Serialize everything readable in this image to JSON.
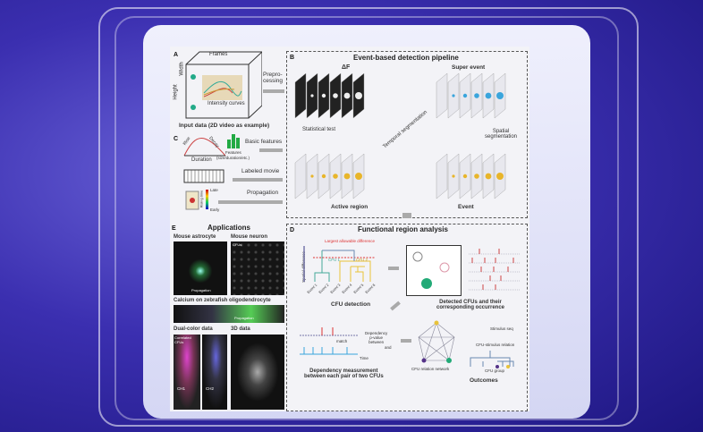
{
  "panelA": {
    "letter": "A",
    "width": "Width",
    "frames": "Frames",
    "height": "Height",
    "curves": "Intensity curves",
    "caption": "Input data (2D video as example)",
    "arrow": "Prepro-\ncessing"
  },
  "panelB": {
    "letter": "B",
    "title": "Event-based detection pipeline",
    "dF": "ΔF",
    "super": "Super event",
    "stat": "Statistical test",
    "temporal": "Temporal segmentation",
    "spatial": "Spatial segmentation",
    "active": "Active region",
    "event": "Event"
  },
  "panelC": {
    "letter": "C",
    "rise": "Rise",
    "decay": "Decay",
    "duration": "Duration",
    "features": "Features",
    "features_sub": "(size/duration/etc.)",
    "basic": "Basic features",
    "labeled": "Labeled movie",
    "propagation": "Propagation",
    "late": "Late",
    "early": "Early",
    "rising": "Rising time"
  },
  "panelE": {
    "letter": "E",
    "title": "Applications",
    "astro": "Mouse astrocyte",
    "neuron": "Mouse neuron",
    "cfus": "CFUs",
    "prop": "Propagation",
    "zebra": "Calcium on zebrafish oligodendrocyte",
    "dual": "Dual-color data",
    "corr": "Correlated CFUs",
    "ch1": "CH1",
    "ch2": "CH2",
    "d3": "3D data"
  },
  "panelD": {
    "letter": "D",
    "title": "Functional region analysis",
    "largest": "Largest allowable difference",
    "ylabel": "Spatial difference",
    "cfu1": "CFU 1",
    "cfu2": "CFU 2",
    "events": [
      "Event 1",
      "Event 2",
      "Event 3",
      "Event 4",
      "Event 5",
      "Event 6"
    ],
    "detection": "CFU detection",
    "detected": "Detected CFUs and their\ncorresponding occurrence",
    "match": "match",
    "time": "Time",
    "dep": "Dependency\np-value\nbetween",
    "and": "and",
    "depmeas": "Dependency measurement\nbetween each pair of two CFUs",
    "network": "CFU relation network",
    "stim": "Stimulus seq",
    "stimrel": "CFU-stimulus relation",
    "group": "CFU group",
    "outcomes": "Outcomes"
  },
  "colors": {
    "accent_gold": "#e8b52a",
    "accent_blue": "#3aa5dc",
    "accent_red": "#d23a3a",
    "green": "#2fa66a"
  }
}
